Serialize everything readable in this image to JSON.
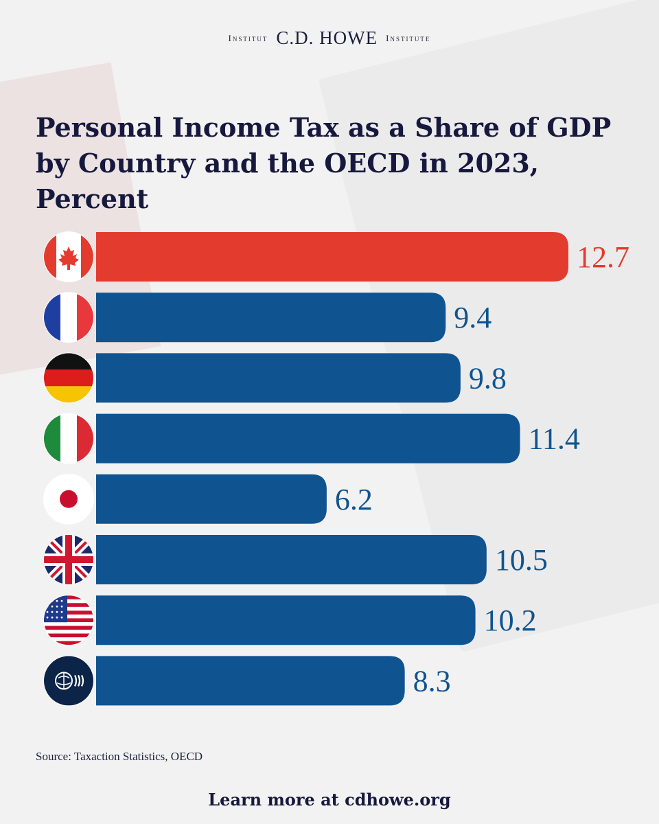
{
  "brand": {
    "left": "Institut",
    "name": "C.D. HOWE",
    "right": "Institute"
  },
  "colors": {
    "highlight": "#e33b2e",
    "bar": "#0f5490",
    "label_blue": "#0f5490",
    "label_red": "#e33b2e"
  },
  "chart_data": {
    "type": "bar",
    "orientation": "horizontal",
    "title": "Personal Income Tax as a Share of GDP by Country and the OECD in 2023, Percent",
    "categories": [
      "Canada",
      "France",
      "Germany",
      "Italy",
      "Japan",
      "United Kingdom",
      "United States",
      "OECD"
    ],
    "icons": [
      "canada-flag-icon",
      "france-flag-icon",
      "germany-flag-icon",
      "italy-flag-icon",
      "japan-flag-icon",
      "uk-flag-icon",
      "usa-flag-icon",
      "oecd-logo-icon"
    ],
    "values": [
      12.7,
      9.4,
      9.8,
      11.4,
      6.2,
      10.5,
      10.2,
      8.3
    ],
    "value_labels": [
      "12.7",
      "9.4",
      "9.8",
      "11.4",
      "6.2",
      "10.5",
      "10.2",
      "8.3"
    ],
    "highlight_index": 0,
    "xlim": [
      0,
      12.7
    ],
    "xlabel": "",
    "ylabel": ""
  },
  "source": "Source: Taxaction Statistics, OECD",
  "footer": "Learn more at cdhowe.org"
}
